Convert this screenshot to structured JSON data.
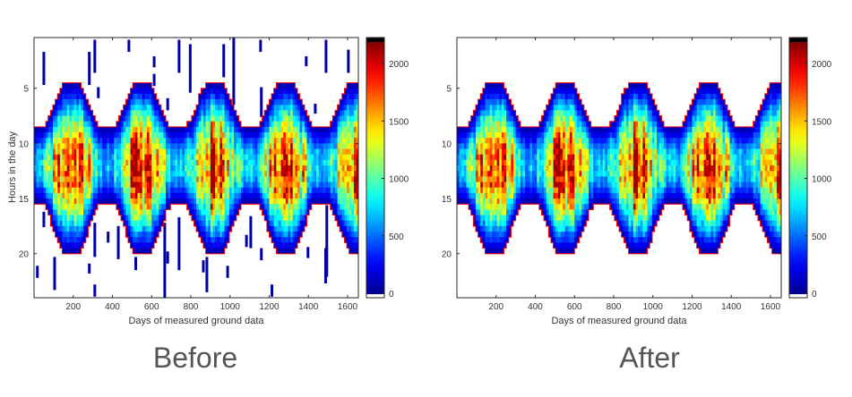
{
  "chart_data": [
    {
      "type": "heatmap",
      "panel": "before",
      "caption": "Before",
      "xlabel": "Days of measured ground data",
      "ylabel": "Hours in the day",
      "xlim": [
        0,
        1655
      ],
      "ylim": [
        0.4,
        24.0
      ],
      "xticks": [
        200,
        400,
        600,
        800,
        1000,
        1200,
        1400,
        1600
      ],
      "yticks": [
        5,
        10,
        15,
        20
      ],
      "colorbar": {
        "range": [
          0,
          2200
        ],
        "ticks": [
          0,
          500,
          1000,
          1500,
          2000
        ],
        "colormap": "jet"
      },
      "model": {
        "period_days": 365,
        "summer_peak_day": 190,
        "sunrise_range_hours": [
          4.5,
          8.5
        ],
        "sunset_range_hours": [
          15.5,
          20.0
        ],
        "peak_value": 2100,
        "day_bin": 12,
        "hour_bin": 0.5
      },
      "boundary_color": "#ff0000",
      "outliers": [
        [
          50,
          1.7,
          4.7
        ],
        [
          310,
          0.6,
          3.6
        ],
        [
          282,
          1.7,
          4.7
        ],
        [
          484,
          0.6,
          1.7
        ],
        [
          613,
          2.1,
          3.1
        ],
        [
          613,
          3.7,
          4.8
        ],
        [
          740,
          0.6,
          3.6
        ],
        [
          797,
          1.0,
          5.4
        ],
        [
          968,
          1.0,
          4.0
        ],
        [
          1019,
          0.4,
          6.5
        ],
        [
          1156,
          0.6,
          1.7
        ],
        [
          1389,
          2.1,
          3.0
        ],
        [
          1490,
          0.6,
          3.6
        ],
        [
          1604,
          1.5,
          3.6
        ],
        [
          328,
          4.9,
          5.9
        ],
        [
          682,
          5.9,
          7.0
        ],
        [
          1160,
          4.9,
          7.6
        ],
        [
          1435,
          6.4,
          7.3
        ],
        [
          50,
          16.2,
          17.6
        ],
        [
          310,
          17.2,
          20.3
        ],
        [
          378,
          18.0,
          19.0
        ],
        [
          430,
          17.5,
          20.5
        ],
        [
          519,
          20.3,
          21.5
        ],
        [
          667,
          17.2,
          24.0
        ],
        [
          682,
          19.8,
          20.9
        ],
        [
          740,
          16.7,
          21.5
        ],
        [
          864,
          20.6,
          21.7
        ],
        [
          882,
          20.3,
          23.5
        ],
        [
          988,
          21.1,
          22.2
        ],
        [
          1084,
          18.3,
          19.4
        ],
        [
          1106,
          16.6,
          19.5
        ],
        [
          1160,
          19.5,
          20.6
        ],
        [
          1214,
          22.8,
          23.9
        ],
        [
          1398,
          19.4,
          20.4
        ],
        [
          1488,
          19.5,
          22.7
        ],
        [
          1494,
          15.6,
          22.1
        ],
        [
          17,
          21.1,
          22.2
        ],
        [
          105,
          20.3,
          23.3
        ],
        [
          282,
          20.9,
          21.8
        ],
        [
          310,
          22.8,
          23.9
        ]
      ]
    },
    {
      "type": "heatmap",
      "panel": "after",
      "caption": "After",
      "xlabel": "Days of measured ground data",
      "ylabel": "",
      "xlim": [
        0,
        1655
      ],
      "ylim": [
        0.4,
        24.0
      ],
      "xticks": [
        200,
        400,
        600,
        800,
        1000,
        1200,
        1400,
        1600
      ],
      "yticks": [
        5,
        10,
        15,
        20
      ],
      "colorbar": {
        "range": [
          0,
          2200
        ],
        "ticks": [
          0,
          500,
          1000,
          1500,
          2000
        ],
        "colormap": "jet"
      },
      "model": {
        "period_days": 365,
        "summer_peak_day": 190,
        "sunrise_range_hours": [
          4.5,
          8.5
        ],
        "sunset_range_hours": [
          15.5,
          20.0
        ],
        "peak_value": 2100,
        "day_bin": 12,
        "hour_bin": 0.5
      },
      "boundary_color": "#ff0000",
      "outliers": []
    }
  ]
}
